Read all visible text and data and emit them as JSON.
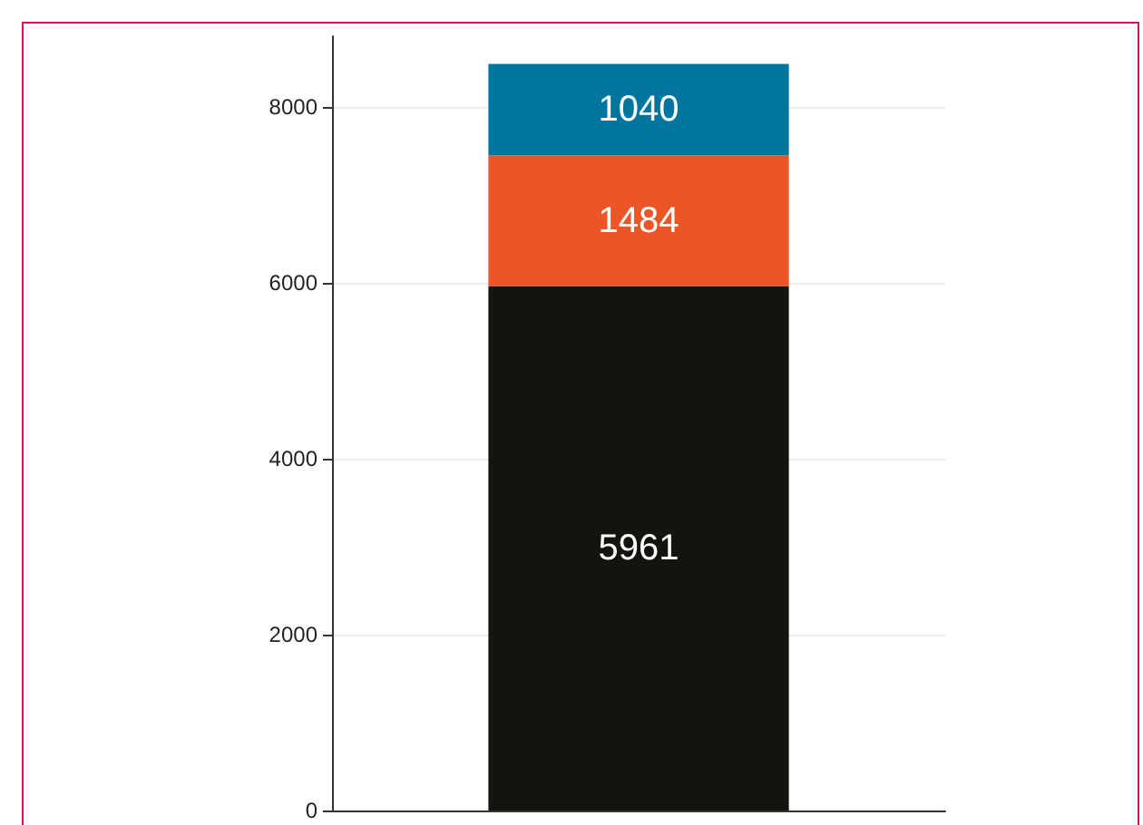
{
  "chart_data": {
    "type": "bar",
    "stacked": true,
    "categories": [
      null
    ],
    "series": [
      {
        "color": "#15130f",
        "values": [
          5961
        ]
      },
      {
        "color": "#ec5626",
        "values": [
          1484
        ]
      },
      {
        "color": "#00769e",
        "values": [
          1040
        ]
      }
    ],
    "ylim": [
      0,
      8800
    ],
    "yticks": [
      0,
      2000,
      4000,
      6000,
      8000
    ],
    "grid": "y",
    "data_labels": true
  }
}
